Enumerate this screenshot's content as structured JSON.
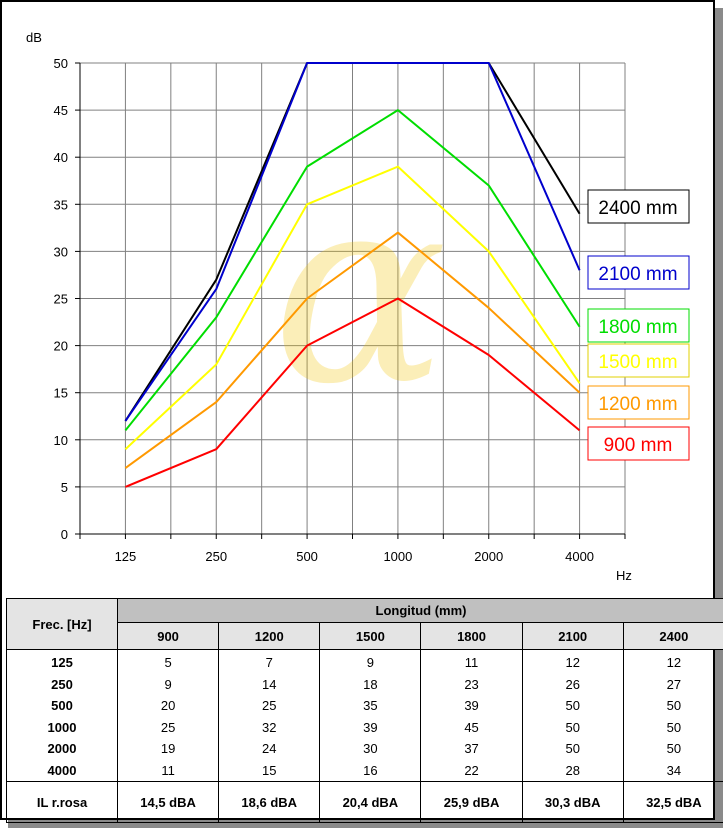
{
  "chart_data": {
    "type": "line",
    "ylabel": "dB",
    "xlabel": "Hz",
    "ylim": [
      0,
      50
    ],
    "yticks": [
      0,
      5,
      10,
      15,
      20,
      25,
      30,
      35,
      40,
      45,
      50
    ],
    "categories": [
      "125",
      "250",
      "500",
      "1000",
      "2000",
      "4000"
    ],
    "grid": true,
    "watermark": "α",
    "series": [
      {
        "name": "2400 mm",
        "color": "#000000",
        "values": [
          12,
          27,
          50,
          50,
          50,
          34
        ]
      },
      {
        "name": "2100 mm",
        "color": "#0000cc",
        "values": [
          12,
          26,
          50,
          50,
          50,
          28
        ]
      },
      {
        "name": "1800 mm",
        "color": "#00dd00",
        "values": [
          11,
          23,
          39,
          45,
          37,
          22
        ]
      },
      {
        "name": "1500 mm",
        "color": "#ffff00",
        "values": [
          9,
          18,
          35,
          39,
          30,
          16
        ]
      },
      {
        "name": "1200 mm",
        "color": "#ff9900",
        "values": [
          7,
          14,
          25,
          32,
          24,
          15
        ]
      },
      {
        "name": "900 mm",
        "color": "#ff0000",
        "values": [
          5,
          9,
          20,
          25,
          19,
          11
        ]
      }
    ]
  },
  "table": {
    "row_header": "Frec. [Hz]",
    "group_header": "Longitud (mm)",
    "columns": [
      "900",
      "1200",
      "1500",
      "1800",
      "2100",
      "2400"
    ],
    "rows": [
      {
        "label": "125",
        "values": [
          "5",
          "7",
          "9",
          "11",
          "12",
          "12"
        ]
      },
      {
        "label": "250",
        "values": [
          "9",
          "14",
          "18",
          "23",
          "26",
          "27"
        ]
      },
      {
        "label": "500",
        "values": [
          "20",
          "25",
          "35",
          "39",
          "50",
          "50"
        ]
      },
      {
        "label": "1000",
        "values": [
          "25",
          "32",
          "39",
          "45",
          "50",
          "50"
        ]
      },
      {
        "label": "2000",
        "values": [
          "19",
          "24",
          "30",
          "37",
          "50",
          "50"
        ]
      },
      {
        "label": "4000",
        "values": [
          "11",
          "15",
          "16",
          "22",
          "28",
          "34"
        ]
      }
    ],
    "summary": {
      "label": "IL r.rosa",
      "values": [
        "14,5 dBA",
        "18,6 dBA",
        "20,4 dBA",
        "25,9 dBA",
        "30,3 dBA",
        "32,5 dBA"
      ]
    }
  }
}
